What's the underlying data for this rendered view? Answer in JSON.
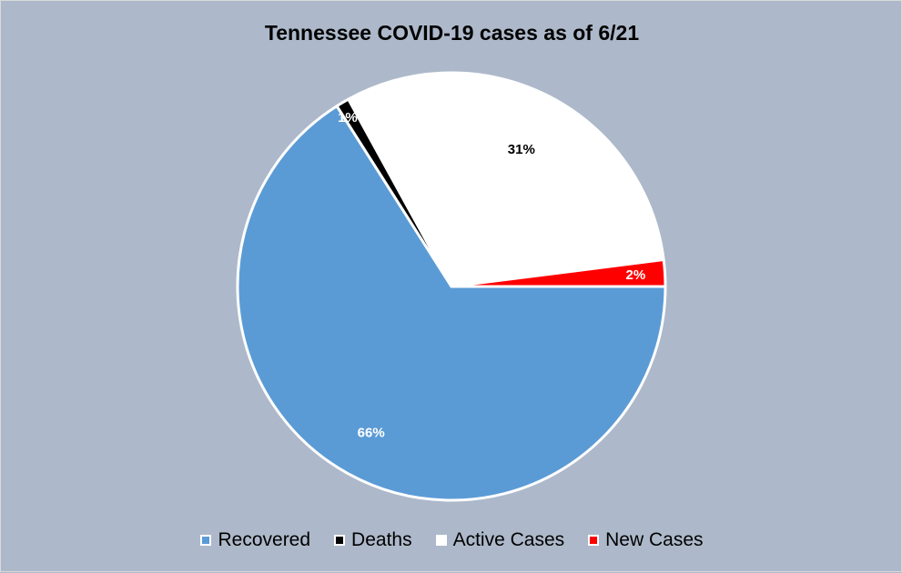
{
  "chart_data": {
    "type": "pie",
    "title": "Tennessee COVID-19 cases as of 6/21",
    "categories": [
      "Recovered",
      "Deaths",
      "Active Cases",
      "New Cases"
    ],
    "values": [
      66,
      1,
      31,
      2
    ],
    "labels": [
      "66%",
      "1%",
      "31%",
      "2%"
    ],
    "colors": [
      "#5b9bd5",
      "#000000",
      "#ffffff",
      "#ff0000"
    ],
    "label_colors": [
      "#ffffff",
      "#ffffff",
      "#000000",
      "#ffffff"
    ],
    "legend_position": "bottom",
    "start_angle_deg": 90,
    "direction": "clockwise"
  }
}
